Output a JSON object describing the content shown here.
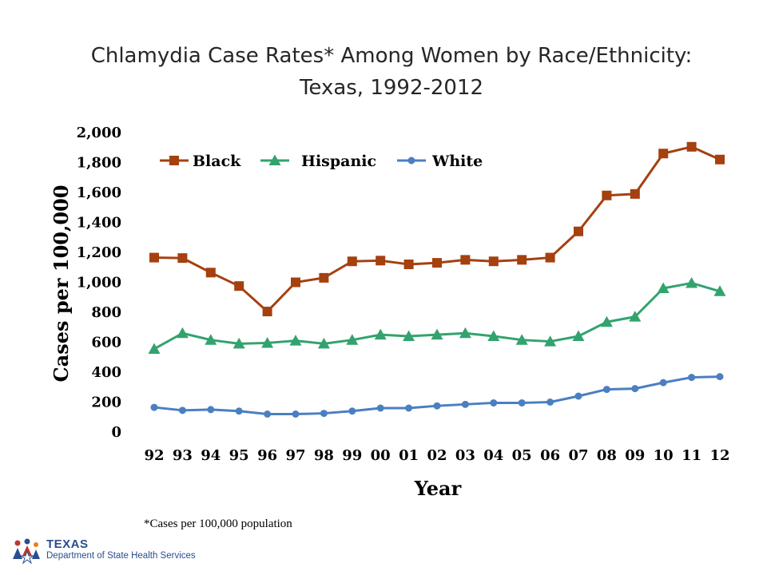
{
  "title_line1": "Chlamydia Case Rates* Among Women by Race/Ethnicity:",
  "title_line2": "Texas, 1992-2012",
  "footnote": "*Cases per 100,000 population",
  "logo": {
    "name": "TEXAS",
    "department": "Department of State Health Services"
  },
  "chart_data": {
    "type": "line",
    "xlabel": "Year",
    "ylabel": "Cases per 100,000",
    "ylim": [
      0,
      2000
    ],
    "yticks": [
      0,
      200,
      400,
      600,
      800,
      1000,
      1200,
      1400,
      1600,
      1800,
      2000
    ],
    "ytick_labels": [
      "0",
      "200",
      "400",
      "600",
      "800",
      "1,000",
      "1,200",
      "1,400",
      "1,600",
      "1,800",
      "2,000"
    ],
    "categories": [
      "92",
      "93",
      "94",
      "95",
      "96",
      "97",
      "98",
      "99",
      "00",
      "01",
      "02",
      "03",
      "04",
      "05",
      "06",
      "07",
      "08",
      "09",
      "10",
      "11",
      "12"
    ],
    "grid": false,
    "legend_position": "top",
    "series": [
      {
        "name": "Black",
        "color": "#a5400f",
        "marker": "square",
        "values": [
          1165,
          1162,
          1065,
          975,
          805,
          1000,
          1030,
          1140,
          1145,
          1120,
          1130,
          1150,
          1140,
          1150,
          1165,
          1340,
          1580,
          1590,
          1860,
          1905,
          1820
        ]
      },
      {
        "name": "Hispanic",
        "color": "#33a36e",
        "marker": "triangle",
        "values": [
          555,
          660,
          615,
          590,
          595,
          610,
          590,
          615,
          650,
          640,
          650,
          660,
          640,
          615,
          605,
          640,
          735,
          770,
          960,
          995,
          940
        ]
      },
      {
        "name": "White",
        "color": "#4a7fc1",
        "marker": "circle",
        "values": [
          165,
          145,
          150,
          140,
          120,
          120,
          125,
          140,
          160,
          160,
          175,
          185,
          195,
          195,
          200,
          240,
          285,
          290,
          330,
          365,
          370
        ]
      }
    ]
  }
}
